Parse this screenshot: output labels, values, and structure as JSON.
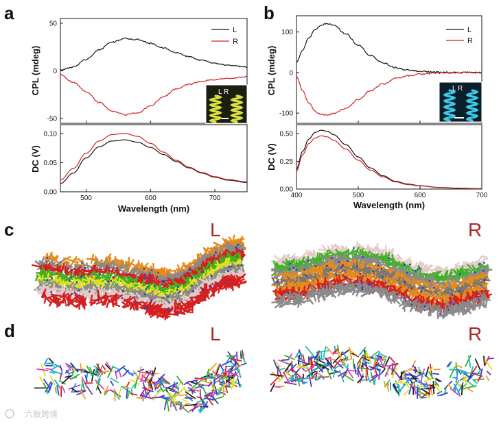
{
  "panels": {
    "a": {
      "label": "a"
    },
    "b": {
      "label": "b"
    },
    "c": {
      "label": "c",
      "left_label": "L",
      "right_label": "R"
    },
    "d": {
      "label": "d",
      "left_label": "L",
      "right_label": "R"
    }
  },
  "inset": {
    "a_text": "L R",
    "b_text": "L R"
  },
  "watermark": "六致跨境",
  "colors": {
    "L": "#111111",
    "R": "#d22020",
    "hand_label": "#b22222",
    "inset_a_bg": "#1c1f10",
    "inset_a_helix": "#d8e040",
    "inset_b_bg": "#0a1f2a",
    "inset_b_helix": "#3fc8e8",
    "strand_palette": [
      "#d42020",
      "#e88a1a",
      "#3cb521",
      "#8a8a8a",
      "#e4c9c9",
      "#2b3fc4",
      "#e0e020",
      "#777777",
      "#c85050"
    ]
  },
  "chart_data": [
    {
      "id": "a-cpl",
      "type": "line",
      "panel": "a",
      "xlim": [
        460,
        750
      ],
      "ylim": [
        -55,
        55
      ],
      "yticks": [
        -50,
        0,
        50
      ],
      "ylabel": "CPL (mdeg)",
      "xlabel": "",
      "legend": [
        {
          "name": "L"
        },
        {
          "name": "R"
        }
      ],
      "legend_position": "top-right",
      "series": [
        {
          "name": "L",
          "x": [
            460,
            480,
            500,
            520,
            540,
            560,
            580,
            600,
            620,
            640,
            660,
            680,
            700,
            720,
            750
          ],
          "y": [
            1,
            4,
            12,
            22,
            30,
            34,
            33,
            29,
            24,
            19,
            15,
            11,
            8,
            6,
            4
          ]
        },
        {
          "name": "R",
          "x": [
            460,
            480,
            500,
            520,
            540,
            560,
            580,
            600,
            620,
            640,
            660,
            680,
            700,
            720,
            750
          ],
          "y": [
            -4,
            -12,
            -22,
            -33,
            -42,
            -46,
            -44,
            -37,
            -27,
            -19,
            -14,
            -11,
            -9,
            -8,
            -6
          ]
        }
      ]
    },
    {
      "id": "a-dc",
      "type": "line",
      "panel": "a",
      "xlim": [
        460,
        750
      ],
      "ylim": [
        0,
        0.115
      ],
      "xticks": [
        500,
        600,
        700
      ],
      "yticks": [
        0.0,
        0.05,
        0.1
      ],
      "xtick_labels": [
        "500",
        "600",
        "700"
      ],
      "ytick_labels": [
        "0.00",
        "0.05",
        "0.10"
      ],
      "ylabel": "DC (V)",
      "xlabel": "Wavelength (nm)",
      "series": [
        {
          "name": "L",
          "x": [
            460,
            480,
            500,
            520,
            540,
            560,
            580,
            600,
            620,
            640,
            660,
            680,
            700,
            720,
            750
          ],
          "y": [
            0.014,
            0.032,
            0.058,
            0.077,
            0.087,
            0.089,
            0.085,
            0.076,
            0.064,
            0.052,
            0.041,
            0.032,
            0.025,
            0.02,
            0.016
          ]
        },
        {
          "name": "R",
          "x": [
            460,
            480,
            500,
            520,
            540,
            560,
            580,
            600,
            620,
            640,
            660,
            680,
            700,
            720,
            750
          ],
          "y": [
            0.02,
            0.04,
            0.066,
            0.087,
            0.098,
            0.1,
            0.095,
            0.083,
            0.068,
            0.054,
            0.042,
            0.033,
            0.026,
            0.021,
            0.017
          ]
        }
      ]
    },
    {
      "id": "b-cpl",
      "type": "line",
      "panel": "b",
      "xlim": [
        400,
        700
      ],
      "ylim": [
        -125,
        140
      ],
      "yticks": [
        -100,
        0,
        100
      ],
      "ylabel": "CPL (mdeg)",
      "xlabel": "",
      "legend": [
        {
          "name": "L"
        },
        {
          "name": "R"
        }
      ],
      "legend_position": "top-right",
      "series": [
        {
          "name": "L",
          "x": [
            400,
            410,
            420,
            430,
            440,
            450,
            460,
            480,
            500,
            520,
            540,
            560,
            580,
            600,
            630,
            660,
            700
          ],
          "y": [
            25,
            55,
            85,
            106,
            118,
            121,
            116,
            95,
            67,
            42,
            24,
            12,
            6,
            3,
            1,
            0,
            0
          ]
        },
        {
          "name": "R",
          "x": [
            400,
            410,
            420,
            430,
            440,
            450,
            460,
            480,
            500,
            520,
            540,
            560,
            580,
            600,
            630,
            660,
            700
          ],
          "y": [
            -10,
            -45,
            -75,
            -95,
            -103,
            -104,
            -101,
            -88,
            -66,
            -45,
            -28,
            -15,
            -8,
            -4,
            -1,
            0,
            0
          ]
        }
      ]
    },
    {
      "id": "b-dc",
      "type": "line",
      "panel": "b",
      "xlim": [
        400,
        700
      ],
      "ylim": [
        0,
        0.58
      ],
      "xticks": [
        400,
        500,
        600,
        700
      ],
      "yticks": [
        0.0,
        0.25,
        0.5
      ],
      "xtick_labels": [
        "400",
        "500",
        "600",
        "700"
      ],
      "ytick_labels": [
        "0.00",
        "0.25",
        "0.50"
      ],
      "ylabel": "DC (V)",
      "xlabel": "Wavelength (nm)",
      "series": [
        {
          "name": "L",
          "x": [
            400,
            410,
            420,
            430,
            440,
            450,
            460,
            480,
            500,
            520,
            540,
            560,
            580,
            600,
            630,
            660,
            700
          ],
          "y": [
            0.18,
            0.34,
            0.45,
            0.51,
            0.53,
            0.52,
            0.49,
            0.4,
            0.29,
            0.19,
            0.12,
            0.07,
            0.045,
            0.03,
            0.015,
            0.008,
            0.004
          ]
        },
        {
          "name": "R",
          "x": [
            400,
            410,
            420,
            430,
            440,
            450,
            460,
            480,
            500,
            520,
            540,
            560,
            580,
            600,
            630,
            660,
            700
          ],
          "y": [
            0.16,
            0.31,
            0.41,
            0.46,
            0.48,
            0.47,
            0.44,
            0.36,
            0.26,
            0.17,
            0.11,
            0.065,
            0.04,
            0.028,
            0.014,
            0.007,
            0.003
          ]
        }
      ]
    }
  ]
}
